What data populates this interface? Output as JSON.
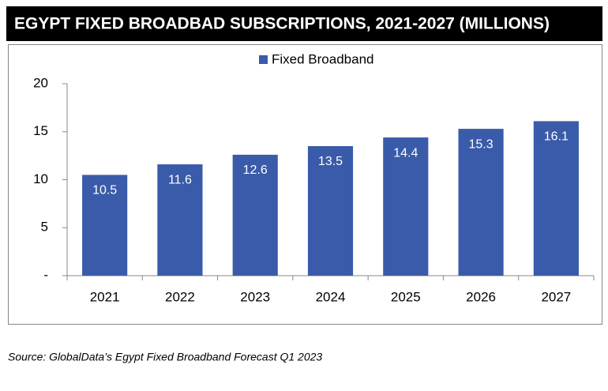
{
  "chart_data": {
    "type": "bar",
    "title": "EGYPT FIXED BROADBAD SUBSCRIPTIONS, 2021-2027 (MILLIONS)",
    "categories": [
      "2021",
      "2022",
      "2023",
      "2024",
      "2025",
      "2026",
      "2027"
    ],
    "series": [
      {
        "name": "Fixed Broadband",
        "color": "#3a5ba9",
        "values": [
          10.5,
          11.6,
          12.6,
          13.5,
          14.4,
          15.3,
          16.1
        ]
      }
    ],
    "ylim": [
      0,
      20
    ],
    "yticks": [
      {
        "value": 0,
        "label": "-"
      },
      5,
      10,
      15,
      20
    ],
    "legend": "top",
    "source": "Source: GlobalData’s Egypt Fixed Broadband Forecast Q1 2023"
  }
}
